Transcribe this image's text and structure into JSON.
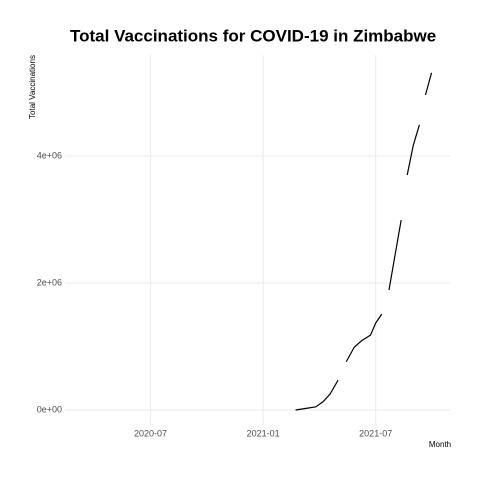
{
  "chart_data": {
    "type": "line",
    "title": "Total Vaccinations for COVID-19 in Zimbabwe",
    "xlabel": "Month",
    "ylabel": "Total Vaccinations",
    "x": [
      2021.144,
      2021.198,
      2021.234,
      2021.266,
      2021.297,
      2021.333,
      2021.35,
      2021.369,
      2021.405,
      2021.437,
      2021.477,
      2021.5,
      2021.527,
      2021.54,
      2021.559,
      2021.586,
      2021.613,
      2021.625,
      2021.64,
      2021.667,
      2021.694,
      2021.705,
      2021.721,
      2021.748
    ],
    "series": [
      {
        "name": "Total Vaccinations",
        "color": "#000000",
        "values": [
          0,
          30000,
          50000,
          130000,
          250000,
          470000,
          null,
          760000,
          990000,
          1090000,
          1180000,
          1370000,
          1510000,
          null,
          1890000,
          2440000,
          2990000,
          null,
          3700000,
          4170000,
          4490000,
          null,
          4960000,
          5310000
        ]
      }
    ],
    "xlim": [
      2020.12,
      2021.83
    ],
    "xticks": [
      {
        "value": 2020.5,
        "label": "2020-07"
      },
      {
        "value": 2021.0,
        "label": "2021-01"
      },
      {
        "value": 2021.5,
        "label": "2021-07"
      }
    ],
    "ylim": [
      -236000,
      5590000
    ],
    "yticks": [
      {
        "value": 0,
        "label": "0e+00"
      },
      {
        "value": 2000000,
        "label": "2e+06"
      },
      {
        "value": 4000000,
        "label": "4e+06"
      }
    ],
    "grid": true
  }
}
